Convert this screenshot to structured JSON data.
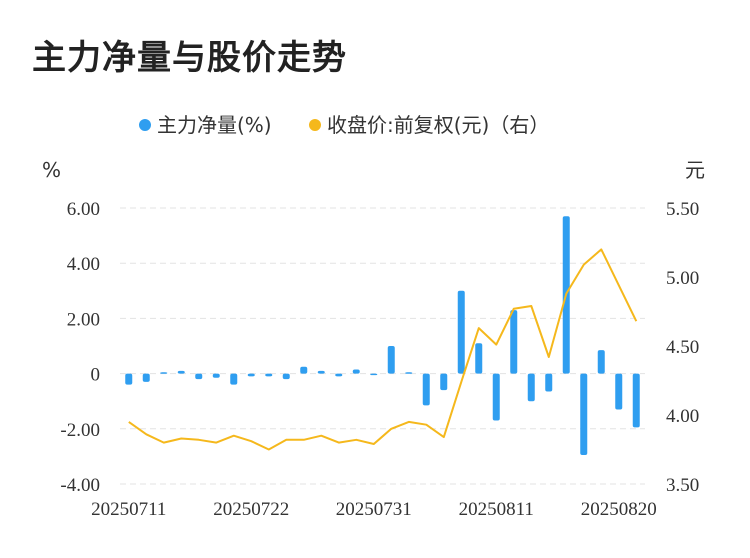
{
  "title": "主力净量与股价走势",
  "colors": {
    "bar": "#2f9ef0",
    "line": "#f5b81c",
    "grid": "#e3e3e3"
  },
  "legend": {
    "bar_label": "主力净量(%)",
    "line_label": "收盘价:前复权(元)（右）"
  },
  "chart_data": {
    "type": "bar+line",
    "title": "主力净量与股价走势",
    "left_unit": "%",
    "right_unit": "元",
    "x_ticks": [
      "20250711",
      "20250722",
      "20250731",
      "20250811",
      "20250820"
    ],
    "y_left_ticks": [
      "6.00",
      "4.00",
      "2.00",
      "0",
      "-2.00",
      "-4.00"
    ],
    "y_right_ticks": [
      "5.50",
      "5.00",
      "4.50",
      "4.00",
      "3.50"
    ],
    "y_left_lim": [
      -4,
      6
    ],
    "y_right_lim": [
      3.5,
      5.5
    ],
    "grid": true,
    "legend_position": "top",
    "series": [
      {
        "name": "主力净量(%)",
        "type": "bar",
        "axis": "left",
        "values": [
          -0.4,
          -0.3,
          0.05,
          0.1,
          -0.2,
          -0.15,
          -0.4,
          -0.1,
          -0.1,
          -0.2,
          0.25,
          0.1,
          -0.1,
          0.15,
          -0.05,
          1.0,
          0.05,
          -1.15,
          -0.6,
          3.0,
          1.1,
          -1.7,
          2.3,
          -1.0,
          -0.65,
          5.7,
          -2.95,
          0.85,
          -1.3,
          -1.95
        ]
      },
      {
        "name": "收盘价:前复权(元)（右）",
        "type": "line",
        "axis": "right",
        "values": [
          3.95,
          3.86,
          3.8,
          3.83,
          3.82,
          3.8,
          3.85,
          3.81,
          3.75,
          3.82,
          3.82,
          3.85,
          3.8,
          3.82,
          3.79,
          3.9,
          3.95,
          3.93,
          3.84,
          4.24,
          4.63,
          4.51,
          4.77,
          4.79,
          4.42,
          4.88,
          5.09,
          5.2,
          4.94,
          4.68
        ]
      }
    ]
  }
}
